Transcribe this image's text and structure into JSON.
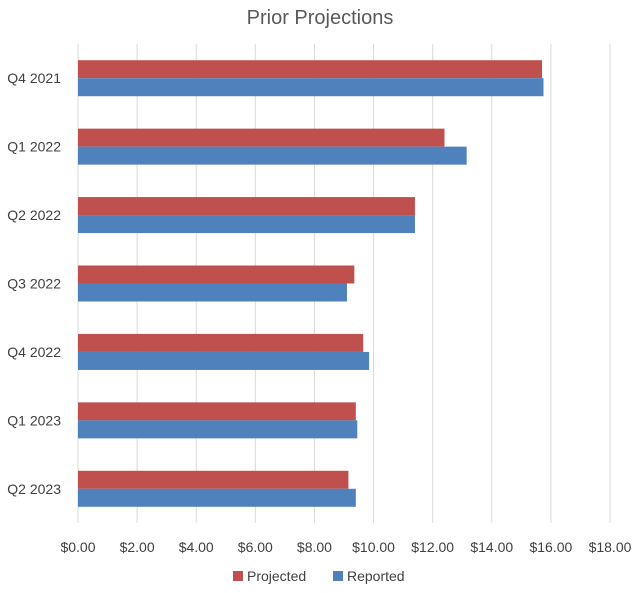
{
  "chart_data": {
    "type": "bar",
    "orientation": "horizontal",
    "title": "Prior Projections",
    "xlabel": "",
    "ylabel": "",
    "categories": [
      "Q4 2021",
      "Q1 2022",
      "Q2 2022",
      "Q3 2022",
      "Q4 2022",
      "Q1 2023",
      "Q2 2023"
    ],
    "series": [
      {
        "name": "Projected",
        "color": "#c0504d",
        "values": [
          15.7,
          12.4,
          11.4,
          9.35,
          9.65,
          9.4,
          9.15
        ]
      },
      {
        "name": "Reported",
        "color": "#4f81bd",
        "values": [
          15.75,
          13.15,
          11.4,
          9.1,
          9.85,
          9.45,
          9.4
        ]
      }
    ],
    "xlim": [
      0,
      18
    ],
    "xticks": [
      "$0.00",
      "$2.00",
      "$4.00",
      "$6.00",
      "$8.00",
      "$10.00",
      "$12.00",
      "$14.00",
      "$16.00",
      "$18.00"
    ],
    "grid": true,
    "legend_position": "bottom"
  }
}
